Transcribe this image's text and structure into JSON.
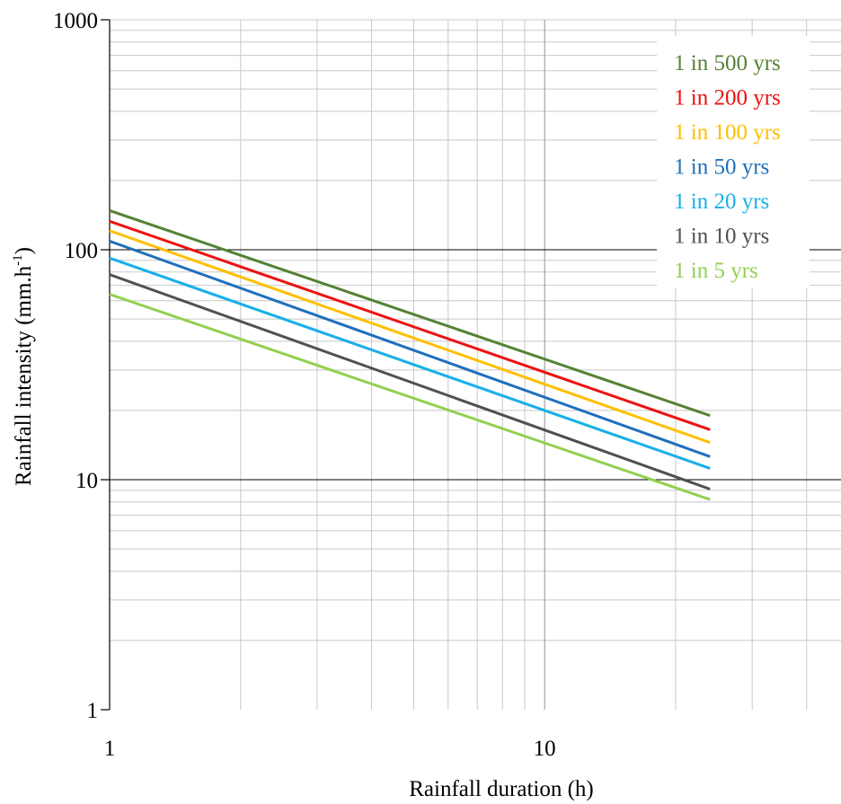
{
  "chart_data": {
    "type": "line",
    "xscale": "log",
    "yscale": "log",
    "xlim": [
      1,
      48
    ],
    "ylim": [
      1,
      1000
    ],
    "xlabel": "Rainfall duration (h)",
    "ylabel_main": "Rainfall intensity (mm.h",
    "ylabel_sup": "-1",
    "ylabel_close": ")",
    "x_ticks": [
      {
        "value": 1,
        "label": "1"
      },
      {
        "value": 10,
        "label": "10"
      }
    ],
    "y_ticks": [
      {
        "value": 1,
        "label": "1"
      },
      {
        "value": 10,
        "label": "10"
      },
      {
        "value": 100,
        "label": "100"
      },
      {
        "value": 1000,
        "label": "1000"
      }
    ],
    "grid": true,
    "legend_position": "top-right",
    "series": [
      {
        "name": "1 in 500 yrs",
        "color": "#548235",
        "x": [
          1,
          24
        ],
        "y": [
          148,
          19
        ]
      },
      {
        "name": "1 in 200 yrs",
        "color": "#ee1111",
        "x": [
          1,
          24
        ],
        "y": [
          133,
          16.5
        ]
      },
      {
        "name": "1 in 100 yrs",
        "color": "#ffc000",
        "x": [
          1,
          24
        ],
        "y": [
          121,
          14.5
        ]
      },
      {
        "name": "1 in 50 yrs",
        "color": "#1f6fbd",
        "x": [
          1,
          24
        ],
        "y": [
          109,
          12.6
        ]
      },
      {
        "name": "1 in 20 yrs",
        "color": "#18b0e8",
        "x": [
          1,
          24
        ],
        "y": [
          92,
          11.2
        ]
      },
      {
        "name": "1 in 10 yrs",
        "color": "#505050",
        "x": [
          1,
          24
        ],
        "y": [
          78,
          9.1
        ]
      },
      {
        "name": "1 in 5 yrs",
        "color": "#92d050",
        "x": [
          1,
          24
        ],
        "y": [
          64,
          8.2
        ]
      }
    ]
  }
}
